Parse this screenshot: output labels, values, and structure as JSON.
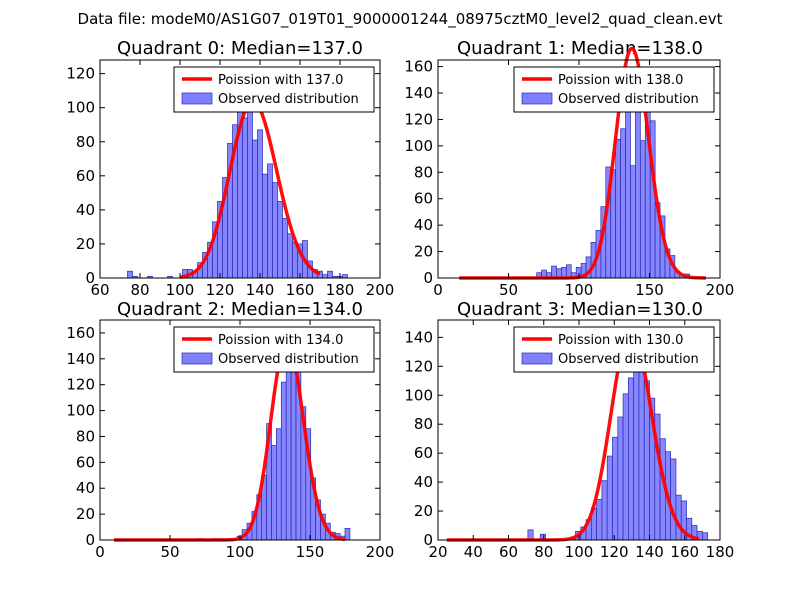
{
  "figure": {
    "suptitle": "Data file: modeM0/AS1G07_019T01_9000001244_08975cztM0_level2_quad_clean.evt"
  },
  "colors": {
    "bar_fill": "#7f7fff",
    "bar_edge": "#2a2ab0",
    "line": "#ff0000",
    "frame": "#000000"
  },
  "chart_data": [
    {
      "type": "bar",
      "title": "Quadrant 0: Median=137.0",
      "median": 137,
      "xlim": [
        60,
        200
      ],
      "ylim": [
        0,
        128
      ],
      "xticks": [
        60,
        80,
        100,
        120,
        140,
        160,
        180,
        200
      ],
      "yticks": [
        0,
        20,
        40,
        60,
        80,
        100,
        120
      ],
      "bin_width": 2.5,
      "legend": {
        "line": "Poission with 137.0",
        "bars": "Observed distribution",
        "position": "top-right"
      },
      "poisson_range": [
        100,
        170
      ],
      "histogram": {
        "x": [
          75,
          77.5,
          85,
          95,
          102.5,
          105,
          107.5,
          110,
          112.5,
          115,
          117.5,
          120,
          122.5,
          125,
          127.5,
          130,
          132.5,
          135,
          137.5,
          140,
          142.5,
          145,
          147.5,
          150,
          152.5,
          155,
          157.5,
          160,
          162.5,
          165,
          167.5,
          170,
          172.5,
          175,
          177.5,
          180,
          182.5
        ],
        "y": [
          4,
          1,
          1,
          1,
          5,
          5,
          4,
          9,
          15,
          21,
          33,
          45,
          59,
          79,
          90,
          102,
          94,
          98,
          81,
          87,
          61,
          67,
          56,
          45,
          35,
          26,
          21,
          20,
          22,
          10,
          5,
          4,
          2,
          4,
          1,
          1,
          2
        ]
      }
    },
    {
      "type": "bar",
      "title": "Quadrant 1: Median=138.0",
      "median": 138,
      "xlim": [
        0,
        200
      ],
      "ylim": [
        0,
        165
      ],
      "xticks": [
        0,
        50,
        100,
        150,
        200
      ],
      "yticks": [
        0,
        20,
        40,
        60,
        80,
        100,
        120,
        140,
        160
      ],
      "bin_width": 3.5,
      "legend": {
        "line": "Poission with 138.0",
        "bars": "Observed distribution",
        "position": "top-right"
      },
      "poisson_range": [
        15,
        190
      ],
      "histogram": {
        "x": [
          71.75,
          75.25,
          78.75,
          82.25,
          85.75,
          89.25,
          92.75,
          96.25,
          99.75,
          103.25,
          106.75,
          110.25,
          113.75,
          117.25,
          120.75,
          124.25,
          127.75,
          131.25,
          134.75,
          138.25,
          141.75,
          145.25,
          148.75,
          152.25,
          155.75,
          159.25,
          162.75,
          166.25,
          169.75,
          173.25,
          176.75
        ],
        "y": [
          4,
          6,
          4,
          9,
          7,
          8,
          10,
          4,
          8,
          11,
          16,
          27,
          36,
          54,
          84,
          82,
          105,
          113,
          138,
          85,
          142,
          104,
          131,
          119,
          57,
          47,
          22,
          17,
          5,
          3,
          3
        ]
      }
    },
    {
      "type": "bar",
      "title": "Quadrant 2: Median=134.0",
      "median": 134,
      "xlim": [
        0,
        200
      ],
      "ylim": [
        0,
        170
      ],
      "xticks": [
        0,
        50,
        100,
        150,
        200
      ],
      "yticks": [
        0,
        20,
        40,
        60,
        80,
        100,
        120,
        140,
        160
      ],
      "bin_width": 3.5,
      "legend": {
        "line": "Poission with 134.0",
        "bars": "Observed distribution",
        "position": "top-right"
      },
      "poisson_range": [
        10,
        175
      ],
      "histogram": {
        "x": [
          71.75,
          82.25,
          85.75,
          99.75,
          103.25,
          106.75,
          110.25,
          113.75,
          117.25,
          120.75,
          124.25,
          127.75,
          131.25,
          134.75,
          138.25,
          141.75,
          145.25,
          148.75,
          152.25,
          155.75,
          159.25,
          162.75,
          166.25,
          169.75,
          173.25,
          176.75
        ],
        "y": [
          1,
          1,
          1,
          3,
          8,
          13,
          22,
          35,
          50,
          90,
          73,
          86,
          122,
          155,
          143,
          150,
          103,
          86,
          48,
          31,
          20,
          13,
          6,
          5,
          3,
          9
        ]
      }
    },
    {
      "type": "bar",
      "title": "Quadrant 3: Median=130.0",
      "median": 130,
      "xlim": [
        20,
        180
      ],
      "ylim": [
        0,
        152
      ],
      "xticks": [
        20,
        40,
        60,
        80,
        100,
        120,
        140,
        160,
        180
      ],
      "yticks": [
        0,
        20,
        40,
        60,
        80,
        100,
        120,
        140
      ],
      "bin_width": 3,
      "legend": {
        "line": "Poission with 130.0",
        "bars": "Observed distribution",
        "position": "top-right"
      },
      "poisson_range": [
        25,
        168
      ],
      "histogram": {
        "x": [
          72.5,
          79.5,
          96.5,
          99.5,
          102.5,
          105.5,
          108.5,
          111.5,
          114.5,
          117.5,
          120.5,
          123.5,
          126.5,
          129.5,
          132.5,
          135.5,
          138.5,
          141.5,
          144.5,
          147.5,
          150.5,
          153.5,
          156.5,
          159.5,
          162.5,
          165.5,
          168.5,
          171.5
        ],
        "y": [
          7,
          4,
          2,
          6,
          9,
          14,
          22,
          28,
          41,
          58,
          71,
          85,
          101,
          112,
          121,
          127,
          110,
          98,
          87,
          70,
          61,
          56,
          31,
          27,
          15,
          10,
          6,
          5
        ]
      }
    }
  ]
}
